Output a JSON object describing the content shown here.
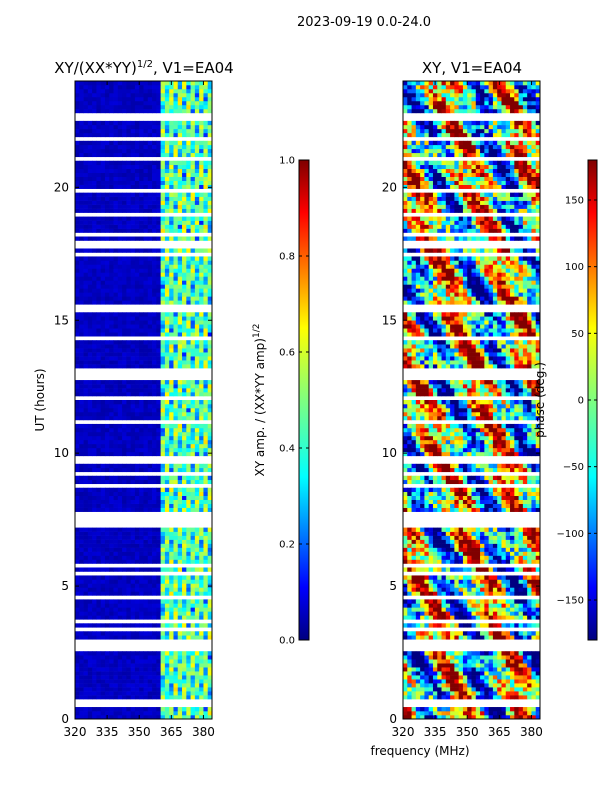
{
  "suptitle": "2023-09-19 0.0-24.0",
  "shared_xlabel": "frequency (MHz)",
  "chart_data": [
    {
      "type": "heatmap",
      "title_main": "XY/(XX*YY)",
      "title_sup": "1/2",
      "title_tail": ", V1=EA04",
      "ylabel": "UT (hours)",
      "xlim": [
        320,
        384
      ],
      "ylim": [
        0,
        24
      ],
      "xticks": [
        320,
        335,
        350,
        365,
        380
      ],
      "yticks": [
        0,
        5,
        10,
        15,
        20
      ],
      "colorbar": {
        "label_main": "XY amp. / (XX*YY amp)",
        "label_sup": "1/2",
        "range": [
          0.0,
          1.0
        ],
        "ticks": [
          "0.0",
          "0.2",
          "0.4",
          "0.6",
          "0.8",
          "1.0"
        ],
        "tick_values": [
          0.0,
          0.2,
          0.4,
          0.6,
          0.8,
          1.0
        ],
        "colormap": "jet"
      },
      "description": "Normalized XY amplitude; mostly ~0.05 (dark blue) below 361 MHz, 0.2-0.6 bands at 361-381 MHz; white rows are flagged time gaps"
    },
    {
      "type": "heatmap",
      "title_main": "XY, V1=EA04",
      "title_sup": "",
      "title_tail": "",
      "ylabel": "",
      "xlim": [
        320,
        384
      ],
      "ylim": [
        0,
        24
      ],
      "xticks": [
        320,
        335,
        350,
        365,
        380
      ],
      "yticks": [
        0,
        5,
        10,
        15,
        20
      ],
      "colorbar": {
        "label_main": "phase (deg.)",
        "label_sup": "",
        "range": [
          -180,
          180
        ],
        "ticks": [
          "−150",
          "−100",
          "−50",
          "0",
          "50",
          "100",
          "150"
        ],
        "tick_values": [
          -150,
          -100,
          -50,
          0,
          50,
          100,
          150
        ],
        "colormap": "jet"
      },
      "description": "XY phase spanning -180 to 180 deg across all frequencies and times; white rows are flagged time gaps"
    }
  ],
  "colors": {
    "jet": [
      "#00007f",
      "#0000ff",
      "#007fff",
      "#00ffff",
      "#7fff7f",
      "#ffff00",
      "#ff7f00",
      "#ff0000",
      "#7f0000"
    ],
    "background": "#ffffff",
    "text": "#000000"
  }
}
